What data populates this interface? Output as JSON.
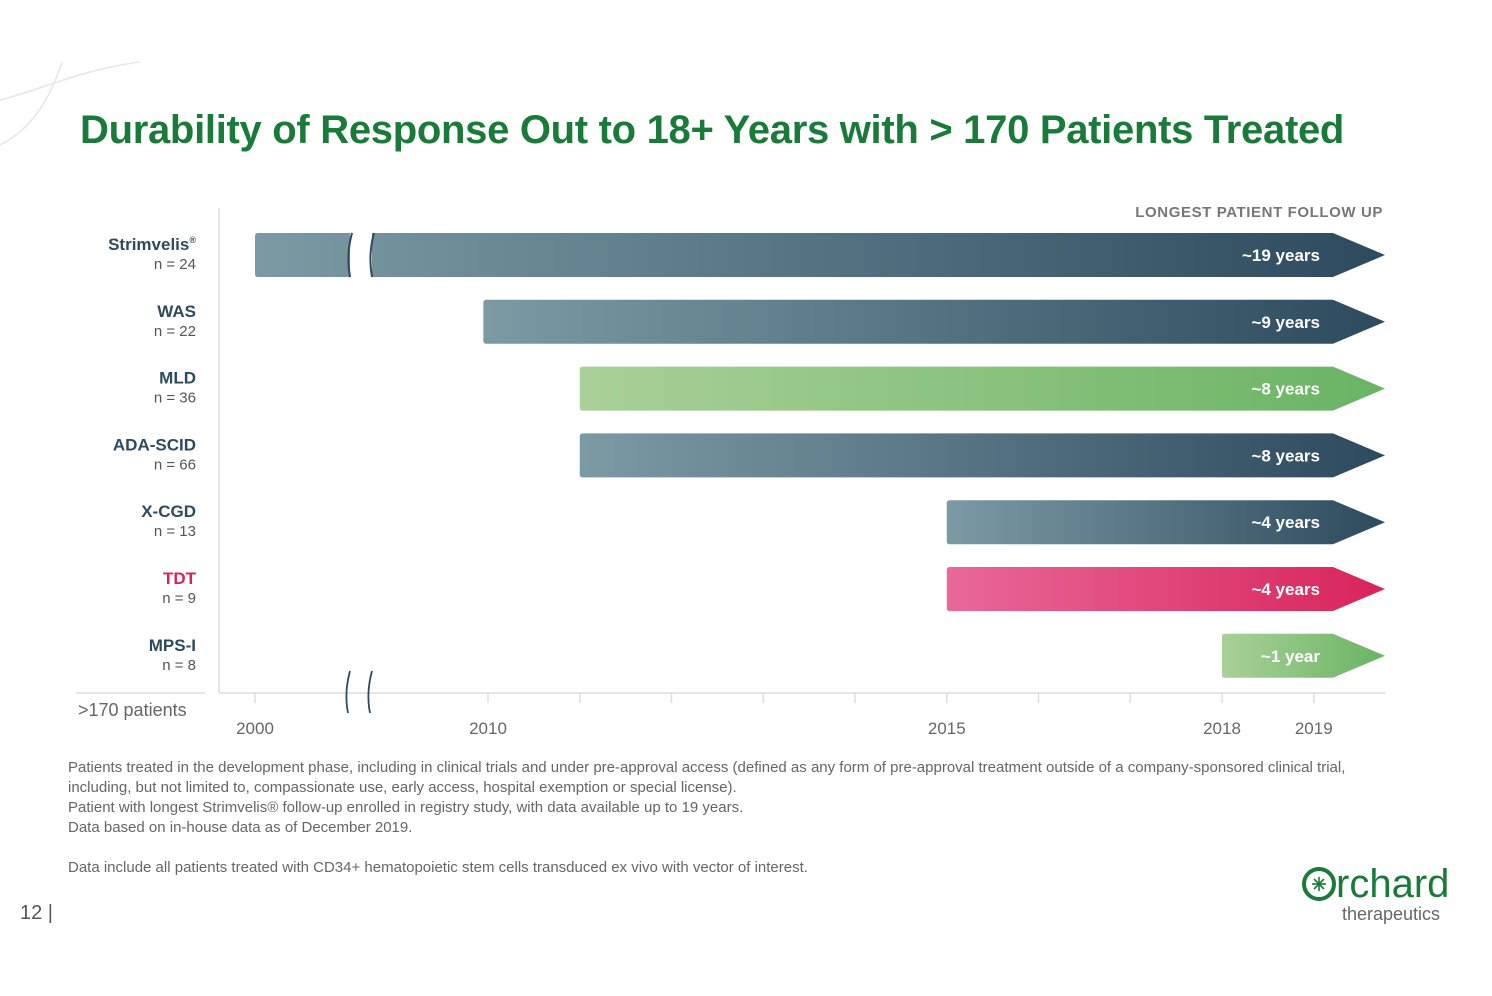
{
  "slide": {
    "title": "Durability of Response Out to 18+ Years with > 170 Patients Treated",
    "page_number": "12 |",
    "notes": [
      "Patients treated in the development phase, including in clinical trials and under pre-approval access (defined as any form of pre-approval treatment outside of a company-sponsored clinical trial, including, but not limited to, compassionate use, early access, hospital exemption or special license).",
      "Patient with longest Strimvelis® follow-up enrolled in registry study, with data available up to 19 years.",
      "Data based on in-house data as of December 2019.",
      "Data include all patients treated with CD34+ hematopoietic stem cells transduced ex vivo with vector of interest."
    ],
    "logo": {
      "word": "rchard",
      "sub": "therapeutics"
    }
  },
  "chart_data": {
    "type": "bar",
    "orientation": "horizontal",
    "header": "LONGEST PATIENT FOLLOW UP",
    "total_label": ">170 patients",
    "x_ticks": [
      "2000",
      "2010",
      "2015",
      "2018",
      "2019"
    ],
    "axis_break": true,
    "series": [
      {
        "name": "Strimvelis",
        "sup": "®",
        "n": "n = 24",
        "start": 2000,
        "end": 2019,
        "label": "~19 years",
        "color_start": "#7c9aa4",
        "color_end": "#2d4a5e",
        "name_color": "#2d4a5e"
      },
      {
        "name": "WAS",
        "sup": "",
        "n": "n = 22",
        "start": 2009.8,
        "end": 2019,
        "label": "~9 years",
        "color_start": "#7c9aa4",
        "color_end": "#2d4a5e",
        "name_color": "#2d4a5e"
      },
      {
        "name": "MLD",
        "sup": "",
        "n": "n = 36",
        "start": 2011,
        "end": 2019,
        "label": "~8 years",
        "color_start": "#a9d098",
        "color_end": "#6ab464",
        "name_color": "#2d4a5e"
      },
      {
        "name": "ADA-SCID",
        "sup": "",
        "n": "n = 66",
        "start": 2011,
        "end": 2019,
        "label": "~8 years",
        "color_start": "#7c9aa4",
        "color_end": "#2d4a5e",
        "name_color": "#2d4a5e"
      },
      {
        "name": "X-CGD",
        "sup": "",
        "n": "n = 13",
        "start": 2015,
        "end": 2019,
        "label": "~4 years",
        "color_start": "#7c9aa4",
        "color_end": "#2d4a5e",
        "name_color": "#2d4a5e"
      },
      {
        "name": "TDT",
        "sup": "",
        "n": "n = 9",
        "start": 2015,
        "end": 2019,
        "label": "~4 years",
        "color_start": "#e8689a",
        "color_end": "#d8245a",
        "name_color": "#d8245a"
      },
      {
        "name": "MPS-I",
        "sup": "",
        "n": "n = 8",
        "start": 2018,
        "end": 2019,
        "label": "~1 year",
        "color_start": "#a9d098",
        "color_end": "#6ab464",
        "name_color": "#2d4a5e"
      }
    ]
  }
}
